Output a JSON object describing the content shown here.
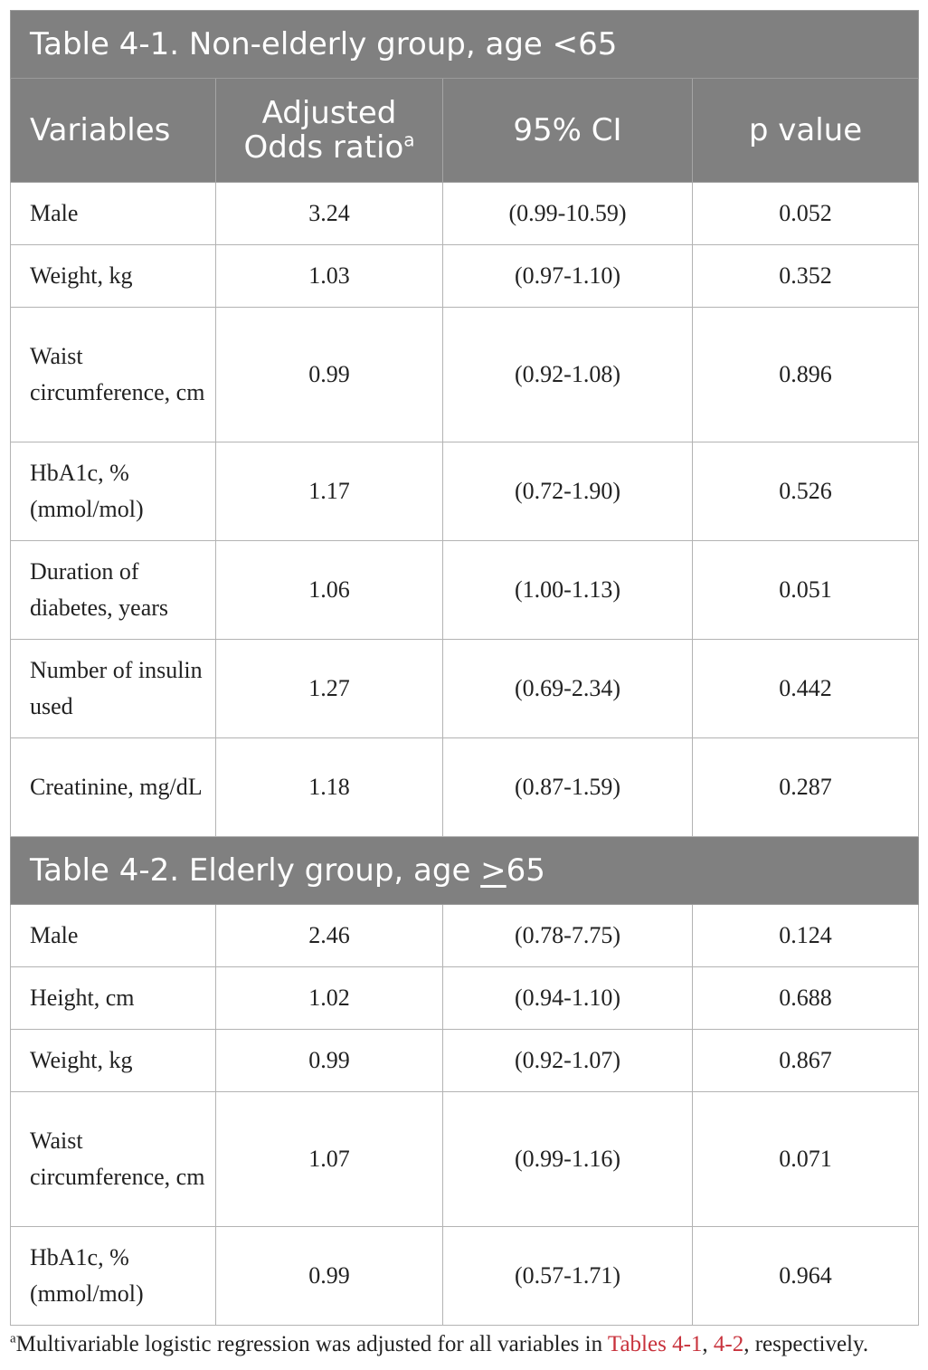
{
  "table1": {
    "title": "Table 4-1. Non-elderly group, age <65",
    "headers": {
      "variables": "Variables",
      "odds_line1": "Adjusted",
      "odds_line2": "Odds ratio",
      "odds_sup": "a",
      "ci": "95% CI",
      "p": "p value"
    },
    "rows": [
      {
        "variable": "Male",
        "odds": "3.24",
        "ci": "(0.99-10.59)",
        "p": "0.052"
      },
      {
        "variable": "Weight, kg",
        "odds": "1.03",
        "ci": "(0.97-1.10)",
        "p": "0.352"
      },
      {
        "variable": "Waist circumference, cm",
        "odds": "0.99",
        "ci": "(0.92-1.08)",
        "p": "0.896"
      },
      {
        "variable": "HbA1c, % (mmol/mol)",
        "odds": "1.17",
        "ci": "(0.72-1.90)",
        "p": "0.526"
      },
      {
        "variable": "Duration of diabetes, years",
        "odds": "1.06",
        "ci": "(1.00-1.13)",
        "p": "0.051"
      },
      {
        "variable": "Number of insulin used",
        "odds": "1.27",
        "ci": "(0.69-2.34)",
        "p": "0.442"
      },
      {
        "variable": "Creatinine, mg/dL",
        "odds": "1.18",
        "ci": "(0.87-1.59)",
        "p": "0.287"
      }
    ]
  },
  "table2": {
    "title_prefix": "Table 4-2. Elderly group, age ",
    "title_underlined": ">",
    "title_suffix": "65",
    "rows": [
      {
        "variable": "Male",
        "odds": "2.46",
        "ci": "(0.78-7.75)",
        "p": "0.124"
      },
      {
        "variable": "Height, cm",
        "odds": "1.02",
        "ci": "(0.94-1.10)",
        "p": "0.688"
      },
      {
        "variable": "Weight, kg",
        "odds": "0.99",
        "ci": "(0.92-1.07)",
        "p": "0.867"
      },
      {
        "variable": "Waist circumference, cm",
        "odds": "1.07",
        "ci": "(0.99-1.16)",
        "p": "0.071"
      },
      {
        "variable": "HbA1c, % (mmol/mol)",
        "odds": "0.99",
        "ci": "(0.57-1.71)",
        "p": "0.964"
      }
    ]
  },
  "footnote": {
    "marker": "a",
    "text_before": "Multivariable logistic regression was adjusted for all variables in ",
    "link1": "Tables 4-1",
    "sep": ", ",
    "link2": "4-2",
    "text_after": ", respectively."
  },
  "colors": {
    "header_bg": "#808080",
    "header_text": "#ffffff",
    "reference_link": "#c8323c"
  }
}
